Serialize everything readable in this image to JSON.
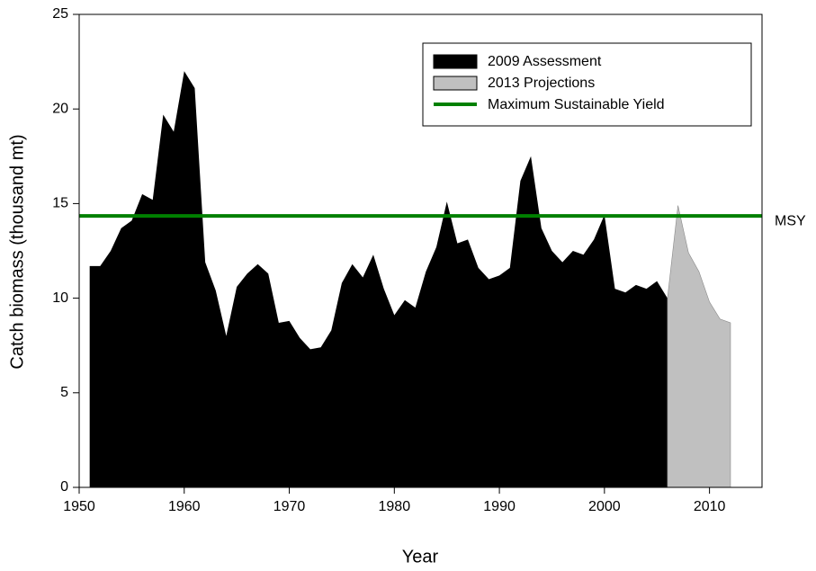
{
  "chart_data": {
    "type": "area",
    "xlabel": "Year",
    "ylabel": "Catch biomass (thousand mt)",
    "x": [
      1951,
      1952,
      1953,
      1954,
      1955,
      1956,
      1957,
      1958,
      1959,
      1960,
      1961,
      1962,
      1963,
      1964,
      1965,
      1966,
      1967,
      1968,
      1969,
      1970,
      1971,
      1972,
      1973,
      1974,
      1975,
      1976,
      1977,
      1978,
      1979,
      1980,
      1981,
      1982,
      1983,
      1984,
      1985,
      1986,
      1987,
      1988,
      1989,
      1990,
      1991,
      1992,
      1993,
      1994,
      1995,
      1996,
      1997,
      1998,
      1999,
      2000,
      2001,
      2002,
      2003,
      2004,
      2005,
      2006,
      2007,
      2008,
      2009,
      2010,
      2011,
      2012
    ],
    "series": [
      {
        "name": "2009 Assessment",
        "color": "#000000",
        "values": [
          11.7,
          11.7,
          12.5,
          13.7,
          14.1,
          15.5,
          15.2,
          19.7,
          18.8,
          22.0,
          21.1,
          11.9,
          10.4,
          8.0,
          10.6,
          11.3,
          11.8,
          11.3,
          8.7,
          8.8,
          7.9,
          7.3,
          7.4,
          8.3,
          10.8,
          11.8,
          11.1,
          12.3,
          10.5,
          9.1,
          9.9,
          9.5,
          11.4,
          12.7,
          15.1,
          12.9,
          13.1,
          11.6,
          11.0,
          11.2,
          11.6,
          16.2,
          17.5,
          13.7,
          12.5,
          11.9,
          12.5,
          12.3,
          13.1,
          14.4,
          10.5,
          10.3,
          10.7,
          10.5,
          10.9,
          10.0,
          null,
          null,
          null,
          null,
          null,
          null
        ]
      },
      {
        "name": "2013 Projections",
        "color": "#c0c0c0",
        "values": [
          null,
          null,
          null,
          null,
          null,
          null,
          null,
          null,
          null,
          null,
          null,
          null,
          null,
          null,
          null,
          null,
          null,
          null,
          null,
          null,
          null,
          null,
          null,
          null,
          null,
          null,
          null,
          null,
          null,
          null,
          null,
          null,
          null,
          null,
          null,
          null,
          null,
          null,
          null,
          null,
          null,
          null,
          null,
          null,
          null,
          null,
          null,
          null,
          null,
          null,
          null,
          null,
          null,
          null,
          null,
          10.0,
          14.9,
          12.4,
          11.4,
          9.8,
          8.9,
          8.7
        ]
      }
    ],
    "msy": {
      "name": "Maximum Sustainable Yield",
      "label": "MSY",
      "value": 14.35,
      "color": "#008000"
    },
    "xlim": [
      1950,
      2015
    ],
    "xticks": [
      1950,
      1960,
      1970,
      1980,
      1990,
      2000,
      2010
    ],
    "ylim": [
      0,
      25
    ],
    "yticks": [
      0,
      5,
      10,
      15,
      20,
      25
    ],
    "legend": "top-right"
  }
}
